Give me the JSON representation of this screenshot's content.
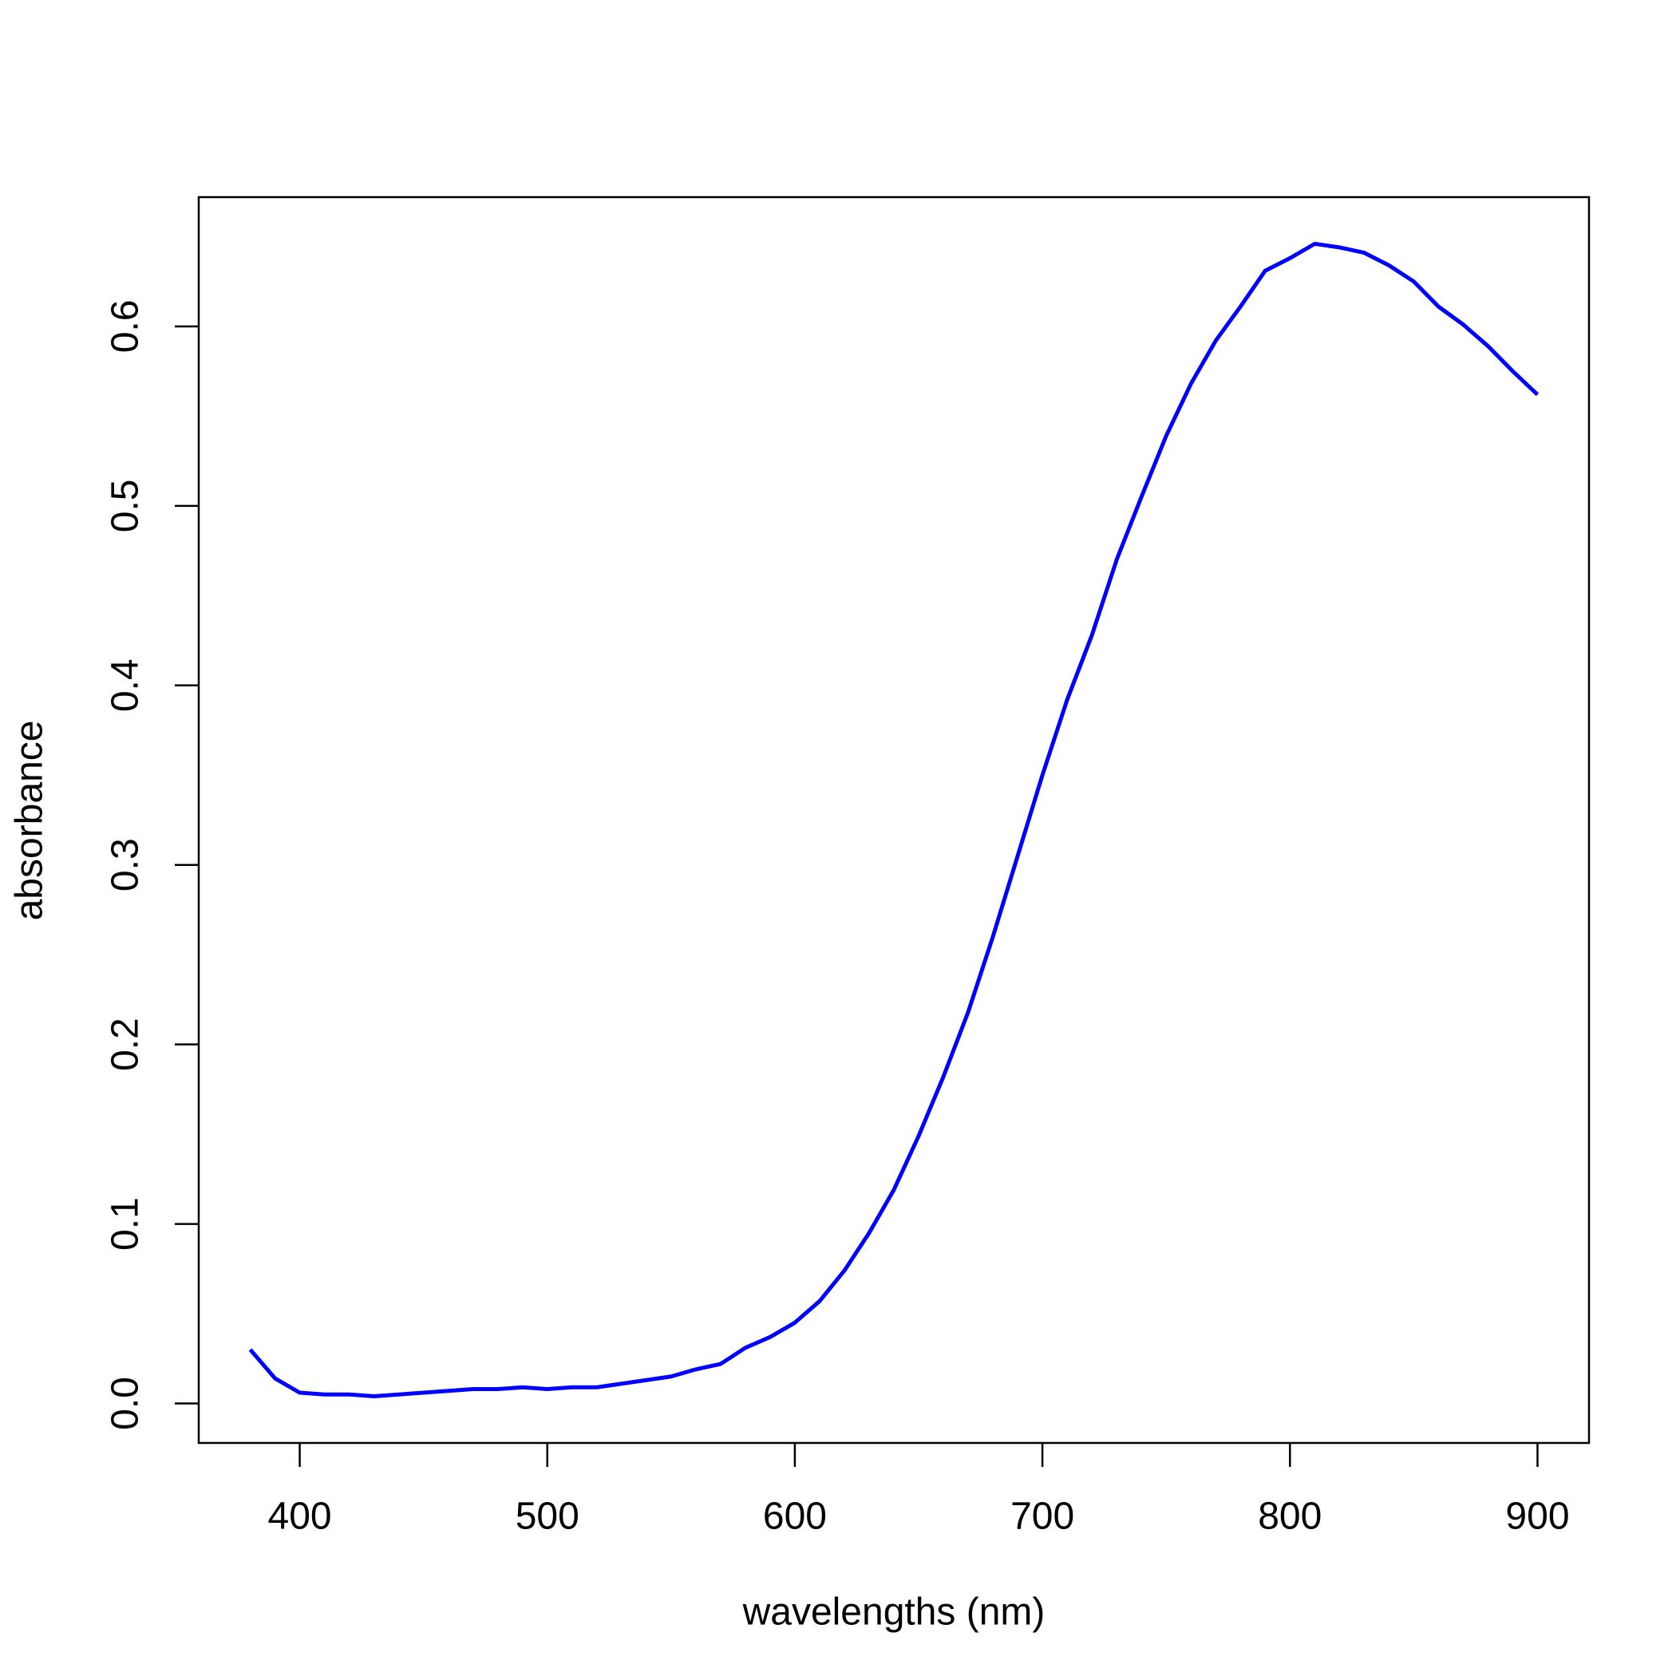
{
  "chart_data": {
    "type": "line",
    "x_label": "wavelengths (nm)",
    "y_label": "absorbance",
    "x": [
      380,
      390,
      400,
      410,
      420,
      430,
      440,
      450,
      460,
      470,
      480,
      490,
      500,
      510,
      520,
      530,
      540,
      550,
      560,
      570,
      580,
      590,
      600,
      610,
      620,
      630,
      640,
      650,
      660,
      670,
      680,
      690,
      700,
      710,
      720,
      730,
      740,
      750,
      760,
      770,
      780,
      790,
      800,
      810,
      820,
      830,
      840,
      850,
      860,
      870,
      880,
      890,
      900
    ],
    "series": [
      {
        "color": "#0000ff",
        "values": [
          0.03,
          0.014,
          0.006,
          0.005,
          0.005,
          0.004,
          0.005,
          0.006,
          0.007,
          0.008,
          0.008,
          0.009,
          0.008,
          0.009,
          0.009,
          0.011,
          0.013,
          0.015,
          0.019,
          0.022,
          0.031,
          0.037,
          0.045,
          0.057,
          0.074,
          0.095,
          0.119,
          0.149,
          0.182,
          0.218,
          0.26,
          0.305,
          0.35,
          0.392,
          0.428,
          0.47,
          0.505,
          0.539,
          0.568,
          0.592,
          0.611,
          0.631,
          0.638,
          0.646,
          0.644,
          0.641,
          0.634,
          0.625,
          0.611,
          0.601,
          0.589,
          0.575,
          0.562
        ]
      }
    ],
    "xlim": [
      359.2,
      920.8
    ],
    "ylim": [
      -0.022,
      0.672
    ],
    "xticks": [
      400,
      500,
      600,
      700,
      800,
      900
    ],
    "yticks": [
      {
        "value": 0,
        "label": "0.0"
      },
      0.1,
      0.2,
      0.3,
      0.4,
      0.5,
      0.6
    ]
  }
}
